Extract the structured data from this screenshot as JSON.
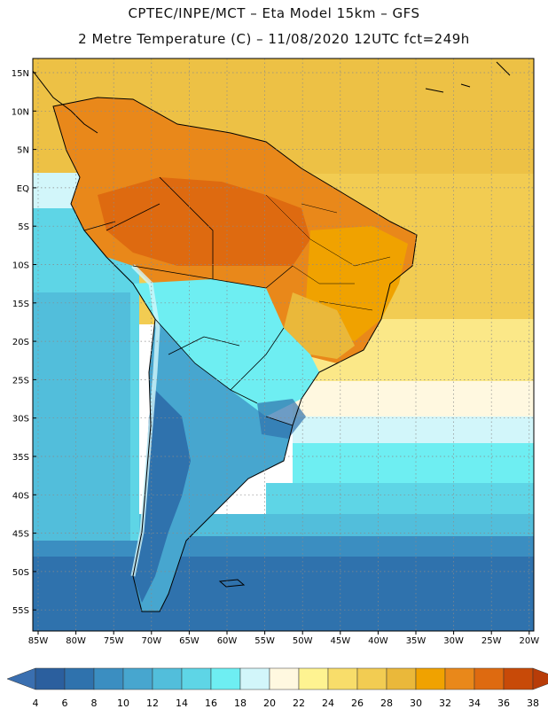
{
  "header": {
    "line1": "CPTEC/INPE/MCT –  Eta Model 15km – GFS",
    "line2": "2 Metre Temperature (C) – 11/08/2020 12UTC fct=249h"
  },
  "map": {
    "lat_labels": [
      "15N",
      "10N",
      "5N",
      "EQ",
      "5S",
      "10S",
      "15S",
      "20S",
      "25S",
      "30S",
      "35S",
      "40S",
      "45S",
      "50S",
      "55S"
    ],
    "lon_labels": [
      "85W",
      "80W",
      "75W",
      "70W",
      "65W",
      "60W",
      "55W",
      "50W",
      "45W",
      "40W",
      "35W",
      "30W",
      "25W",
      "20W"
    ]
  },
  "colorbar": {
    "ticks": [
      "4",
      "6",
      "8",
      "10",
      "12",
      "14",
      "16",
      "18",
      "20",
      "22",
      "24",
      "26",
      "28",
      "30",
      "32",
      "34",
      "36",
      "38"
    ],
    "colors": [
      "#2b5f9e",
      "#2f72ad",
      "#3b8ec1",
      "#47a6cf",
      "#52bedb",
      "#5ed5e6",
      "#6eeef2",
      "#d2f6fa",
      "#fff8e0",
      "#fef391",
      "#f8dd6a",
      "#f2cc52",
      "#eab83a",
      "#f0a200",
      "#e9881a",
      "#de6a10",
      "#c84a08"
    ],
    "low_color": "#3a6fb0",
    "high_color": "#b83c08"
  }
}
